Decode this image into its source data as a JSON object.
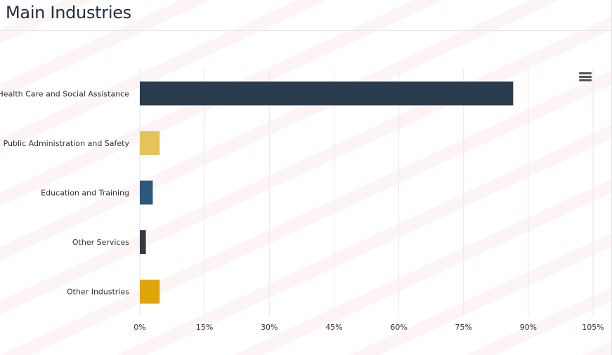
{
  "header": {
    "title": "Main Industries"
  },
  "toolbar": {
    "menu_icon": "hamburger-menu-icon"
  },
  "chart_data": {
    "type": "bar",
    "orientation": "horizontal",
    "title": "Main Industries",
    "xlabel": "",
    "ylabel": "",
    "categories": [
      "Health Care and Social Assistance",
      "Public Administration and Safety",
      "Education and Training",
      "Other Services",
      "Other Industries"
    ],
    "values": [
      86.5,
      4.6,
      3.0,
      1.4,
      4.6
    ],
    "colors": [
      "#2a3b4d",
      "#e3c35a",
      "#2b587c",
      "#333842",
      "#e0a50a"
    ],
    "xlim": [
      0,
      105
    ],
    "xticks": [
      0,
      15,
      30,
      45,
      60,
      75,
      90,
      105
    ],
    "tick_labels": [
      "0%",
      "15%",
      "30%",
      "45%",
      "60%",
      "75%",
      "90%",
      "105%"
    ],
    "grid": true,
    "legend": "none"
  }
}
